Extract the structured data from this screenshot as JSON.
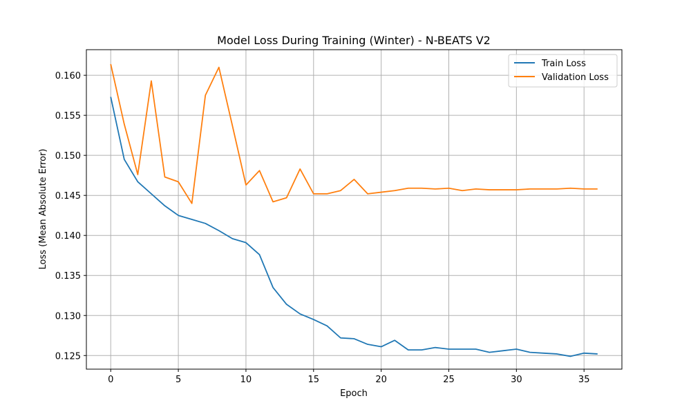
{
  "chart_data": {
    "type": "line",
    "title": "Model Loss During Training (Winter) - N-BEATS V2",
    "xlabel": "Epoch",
    "ylabel": "Loss (Mean Absolute Error)",
    "xlim": [
      -1.8,
      37.8
    ],
    "ylim": [
      0.1233,
      0.1632
    ],
    "xticks": [
      0,
      5,
      10,
      15,
      20,
      25,
      30,
      35
    ],
    "xtick_labels": [
      "0",
      "5",
      "10",
      "15",
      "20",
      "25",
      "30",
      "35"
    ],
    "yticks": [
      0.125,
      0.13,
      0.135,
      0.14,
      0.145,
      0.15,
      0.155,
      0.16
    ],
    "ytick_labels": [
      "0.125",
      "0.130",
      "0.135",
      "0.140",
      "0.145",
      "0.150",
      "0.155",
      "0.160"
    ],
    "grid": true,
    "legend_position": "top-right",
    "x": [
      0,
      1,
      2,
      3,
      4,
      5,
      6,
      7,
      8,
      9,
      10,
      11,
      12,
      13,
      14,
      15,
      16,
      17,
      18,
      19,
      20,
      21,
      22,
      23,
      24,
      25,
      26,
      27,
      28,
      29,
      30,
      31,
      32,
      33,
      34,
      35,
      36
    ],
    "series": [
      {
        "name": "Train Loss",
        "color": "#1f77b4",
        "values": [
          0.1573,
          0.1495,
          0.1467,
          0.1452,
          0.1437,
          0.1425,
          0.142,
          0.1415,
          0.1406,
          0.1396,
          0.1391,
          0.1376,
          0.1335,
          0.1314,
          0.1302,
          0.1295,
          0.1287,
          0.1272,
          0.1271,
          0.1264,
          0.1261,
          0.1269,
          0.1257,
          0.1257,
          0.126,
          0.1258,
          0.1258,
          0.1258,
          0.1254,
          0.1256,
          0.1258,
          0.1254,
          0.1253,
          0.1252,
          0.1249,
          0.1253,
          0.1252
        ]
      },
      {
        "name": "Validation Loss",
        "color": "#ff7f0e",
        "values": [
          0.1614,
          0.1539,
          0.1476,
          0.1593,
          0.1473,
          0.1467,
          0.144,
          0.1575,
          0.161,
          0.1537,
          0.1463,
          0.1481,
          0.1442,
          0.1447,
          0.1483,
          0.1452,
          0.1452,
          0.1456,
          0.147,
          0.1452,
          0.1454,
          0.1456,
          0.1459,
          0.1459,
          0.1458,
          0.1459,
          0.1456,
          0.1458,
          0.1457,
          0.1457,
          0.1457,
          0.1458,
          0.1458,
          0.1458,
          0.1459,
          0.1458,
          0.1458
        ]
      }
    ]
  }
}
